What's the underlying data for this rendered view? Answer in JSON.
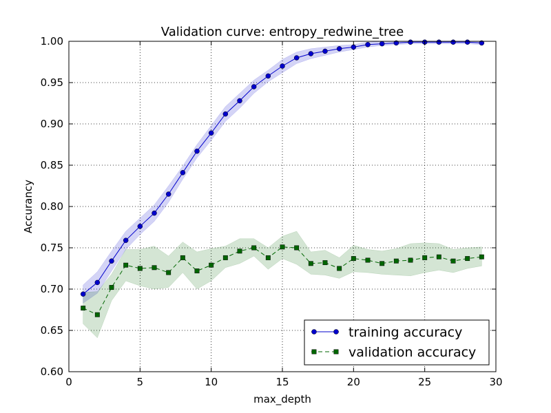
{
  "chart_data": {
    "type": "line",
    "title": "Validation curve: entropy_redwine_tree",
    "xlabel": "max_depth",
    "ylabel": "Accurancy",
    "xlim": [
      0,
      30
    ],
    "ylim": [
      0.6,
      1.0
    ],
    "xticks": [
      0,
      5,
      10,
      15,
      20,
      25,
      30
    ],
    "yticks": [
      0.6,
      0.65,
      0.7,
      0.75,
      0.8,
      0.85,
      0.9,
      0.95,
      1.0
    ],
    "xtick_labels": [
      "0",
      "5",
      "10",
      "15",
      "20",
      "25",
      "30"
    ],
    "ytick_labels": [
      "0.60",
      "0.65",
      "0.70",
      "0.75",
      "0.80",
      "0.85",
      "0.90",
      "0.95",
      "1.00"
    ],
    "grid": true,
    "legend_position": "lower-right",
    "x": [
      1,
      2,
      3,
      4,
      5,
      6,
      7,
      8,
      9,
      10,
      11,
      12,
      13,
      14,
      15,
      16,
      17,
      18,
      19,
      20,
      21,
      22,
      23,
      24,
      25,
      26,
      27,
      28,
      29
    ],
    "series": [
      {
        "name": "training accuracy",
        "color": "#0000cc",
        "marker": "circle",
        "linestyle": "solid",
        "values": [
          0.694,
          0.708,
          0.734,
          0.759,
          0.776,
          0.792,
          0.815,
          0.841,
          0.867,
          0.889,
          0.912,
          0.928,
          0.945,
          0.958,
          0.97,
          0.98,
          0.985,
          0.988,
          0.991,
          0.993,
          0.996,
          0.997,
          0.998,
          0.999,
          0.999,
          0.999,
          0.999,
          0.999,
          0.998
        ],
        "band_lower": [
          0.683,
          0.695,
          0.722,
          0.748,
          0.766,
          0.782,
          0.805,
          0.833,
          0.859,
          0.88,
          0.903,
          0.919,
          0.937,
          0.951,
          0.962,
          0.973,
          0.979,
          0.983,
          0.987,
          0.99,
          0.993,
          0.995,
          0.996,
          0.997,
          0.997,
          0.997,
          0.997,
          0.997,
          0.996
        ],
        "band_upper": [
          0.705,
          0.721,
          0.746,
          0.77,
          0.786,
          0.802,
          0.825,
          0.849,
          0.875,
          0.898,
          0.921,
          0.937,
          0.953,
          0.965,
          0.978,
          0.987,
          0.991,
          0.993,
          0.995,
          0.996,
          0.999,
          1.0,
          1.0,
          1.0,
          1.0,
          1.0,
          1.0,
          1.0,
          1.0
        ]
      },
      {
        "name": "validation accuracy",
        "color": "#006600",
        "marker": "square",
        "linestyle": "dashed",
        "values": [
          0.677,
          0.669,
          0.702,
          0.729,
          0.725,
          0.726,
          0.72,
          0.738,
          0.722,
          0.729,
          0.738,
          0.746,
          0.75,
          0.738,
          0.751,
          0.75,
          0.731,
          0.732,
          0.725,
          0.737,
          0.735,
          0.731,
          0.734,
          0.735,
          0.738,
          0.739,
          0.734,
          0.737,
          0.739
        ],
        "band_lower": [
          0.658,
          0.641,
          0.686,
          0.71,
          0.704,
          0.7,
          0.702,
          0.72,
          0.7,
          0.71,
          0.726,
          0.731,
          0.74,
          0.724,
          0.737,
          0.73,
          0.718,
          0.717,
          0.713,
          0.721,
          0.72,
          0.718,
          0.717,
          0.716,
          0.72,
          0.723,
          0.72,
          0.725,
          0.728
        ],
        "band_upper": [
          0.696,
          0.697,
          0.718,
          0.748,
          0.748,
          0.752,
          0.74,
          0.757,
          0.745,
          0.749,
          0.752,
          0.761,
          0.761,
          0.75,
          0.764,
          0.77,
          0.745,
          0.747,
          0.738,
          0.753,
          0.748,
          0.746,
          0.749,
          0.755,
          0.756,
          0.755,
          0.748,
          0.75,
          0.751
        ]
      }
    ]
  }
}
